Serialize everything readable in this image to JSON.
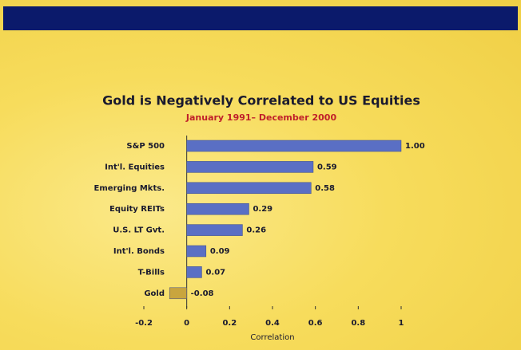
{
  "chart_data": {
    "type": "hbar",
    "title": "Gold is Negatively Correlated to US Equities",
    "subtitle": "January 1991– December 2000",
    "x_label": "Correlation",
    "categories": [
      "S&P 500",
      "Int'l. Equities",
      "Emerging Mkts.",
      "Equity REITs",
      "U.S. LT Gvt.",
      "Int'l. Bonds",
      "T-Bills",
      "Gold"
    ],
    "values": [
      1.0,
      0.59,
      0.58,
      0.29,
      0.26,
      0.09,
      0.07,
      -0.08
    ],
    "value_labels": [
      "1.00",
      "0.59",
      "0.58",
      "0.29",
      "0.26",
      "0.09",
      "0.07",
      "-0.08"
    ],
    "colors": [
      "#5a6fc4",
      "#5a6fc4",
      "#5a6fc4",
      "#5a6fc4",
      "#5a6fc4",
      "#5a6fc4",
      "#5a6fc4",
      "#c9a53e"
    ],
    "xlim": [
      -0.2,
      1
    ],
    "xticks": [
      -0.2,
      0,
      0.2,
      0.4,
      0.6,
      0.8,
      1
    ]
  }
}
